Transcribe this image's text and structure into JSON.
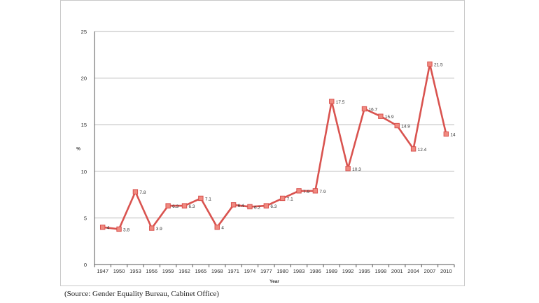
{
  "colors": {
    "series": "#d9534f",
    "marker": "#f08a80",
    "grid": "#b9b9b9",
    "axis": "#555555"
  },
  "chart_data": {
    "type": "line",
    "xlabel": "Year",
    "ylabel": "%",
    "ylim": [
      0,
      25
    ],
    "yticks": [
      "0",
      "5",
      "10",
      "15",
      "20",
      "25"
    ],
    "grid": "horizontal",
    "categories": [
      "1947",
      "1950",
      "1953",
      "1956",
      "1959",
      "1962",
      "1965",
      "1968",
      "1971",
      "1974",
      "1977",
      "1980",
      "1983",
      "1986",
      "1989",
      "1992",
      "1995",
      "1998",
      "2001",
      "2004",
      "2007",
      "2010"
    ],
    "series": [
      {
        "values": [
          4,
          3.8,
          7.8,
          3.9,
          6.3,
          6.3,
          7.1,
          4,
          6.4,
          6.2,
          6.3,
          7.1,
          7.9,
          7.9,
          17.5,
          10.3,
          16.7,
          15.9,
          14.9,
          12.4,
          21.5,
          14
        ],
        "labels": [
          "4",
          "3.8",
          "7.8",
          "3.9",
          "6.3",
          "6.3",
          "7.1",
          "4",
          "6.4",
          "6.2",
          "6.3",
          "7.1",
          "7.9",
          "7.9",
          "17.5",
          "10.3",
          "16.7",
          "15.9",
          "14.9",
          "12.4",
          "21.5",
          "14"
        ]
      }
    ]
  },
  "source_note": "(Source: Gender Equality  Bureau,  Cabinet Office)"
}
